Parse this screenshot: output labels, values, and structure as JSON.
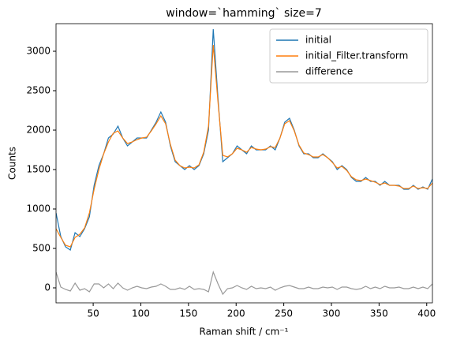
{
  "chart_data": {
    "type": "line",
    "title": "window=`hamming` size=7",
    "x_label": "Raman shift / cm⁻¹",
    "y_label": "Counts",
    "x": [
      11,
      16,
      21,
      26,
      31,
      36,
      41,
      46,
      51,
      56,
      61,
      66,
      71,
      76,
      81,
      86,
      91,
      96,
      101,
      106,
      111,
      116,
      121,
      126,
      131,
      136,
      141,
      146,
      151,
      156,
      161,
      166,
      171,
      176,
      181,
      186,
      191,
      196,
      201,
      206,
      211,
      216,
      221,
      226,
      231,
      236,
      241,
      246,
      251,
      256,
      261,
      266,
      271,
      276,
      281,
      286,
      291,
      296,
      301,
      306,
      311,
      316,
      321,
      326,
      331,
      336,
      341,
      346,
      351,
      356,
      361,
      366,
      371,
      376,
      381,
      386,
      391,
      396,
      401,
      406
    ],
    "series": [
      {
        "name": "initial",
        "color": "#1f77b4",
        "values": [
          950,
          650,
          520,
          480,
          700,
          650,
          750,
          900,
          1300,
          1550,
          1700,
          1900,
          1950,
          2050,
          1900,
          1800,
          1850,
          1900,
          1900,
          1900,
          2000,
          2100,
          2230,
          2100,
          1800,
          1600,
          1550,
          1500,
          1550,
          1500,
          1550,
          1700,
          2000,
          3280,
          2400,
          1600,
          1650,
          1700,
          1800,
          1750,
          1700,
          1800,
          1750,
          1750,
          1750,
          1800,
          1750,
          1900,
          2100,
          2150,
          2000,
          1800,
          1700,
          1700,
          1650,
          1650,
          1700,
          1650,
          1600,
          1500,
          1550,
          1500,
          1400,
          1350,
          1350,
          1400,
          1350,
          1350,
          1300,
          1350,
          1300,
          1300,
          1300,
          1250,
          1250,
          1300,
          1250,
          1280,
          1250,
          1380
        ]
      },
      {
        "name": "initial_Filter.transform",
        "color": "#ff7f0e",
        "values": [
          750,
          640,
          540,
          520,
          640,
          680,
          760,
          950,
          1250,
          1500,
          1700,
          1850,
          1960,
          1990,
          1900,
          1830,
          1850,
          1880,
          1900,
          1910,
          1990,
          2080,
          2180,
          2080,
          1820,
          1620,
          1550,
          1520,
          1530,
          1520,
          1560,
          1720,
          2050,
          3080,
          2350,
          1680,
          1660,
          1700,
          1770,
          1750,
          1720,
          1780,
          1760,
          1750,
          1760,
          1790,
          1780,
          1900,
          2080,
          2120,
          1990,
          1810,
          1710,
          1690,
          1660,
          1660,
          1690,
          1650,
          1590,
          1520,
          1540,
          1490,
          1410,
          1370,
          1360,
          1380,
          1360,
          1340,
          1310,
          1330,
          1300,
          1300,
          1290,
          1260,
          1260,
          1290,
          1260,
          1270,
          1260,
          1330
        ]
      },
      {
        "name": "difference",
        "color": "#999999",
        "values": [
          200,
          10,
          -20,
          -40,
          60,
          -30,
          -10,
          -50,
          50,
          50,
          0,
          50,
          -10,
          60,
          0,
          -30,
          0,
          20,
          0,
          -10,
          10,
          20,
          50,
          20,
          -20,
          -20,
          0,
          -20,
          20,
          -20,
          -10,
          -20,
          -50,
          200,
          50,
          -80,
          -10,
          0,
          30,
          0,
          -20,
          20,
          -10,
          0,
          -10,
          10,
          -30,
          0,
          20,
          30,
          10,
          -10,
          -10,
          10,
          -10,
          -10,
          10,
          0,
          10,
          -20,
          10,
          10,
          -10,
          -20,
          -10,
          20,
          -10,
          10,
          -10,
          20,
          0,
          0,
          10,
          -10,
          -10,
          10,
          -10,
          10,
          -10,
          50
        ]
      }
    ],
    "xlim": [
      11,
      406
    ],
    "ylim": [
      -190,
      3350
    ],
    "xticks": [
      50,
      100,
      150,
      200,
      250,
      300,
      350,
      400
    ],
    "yticks": [
      0,
      500,
      1000,
      1500,
      2000,
      2500,
      3000
    ],
    "legend": "upper right"
  }
}
